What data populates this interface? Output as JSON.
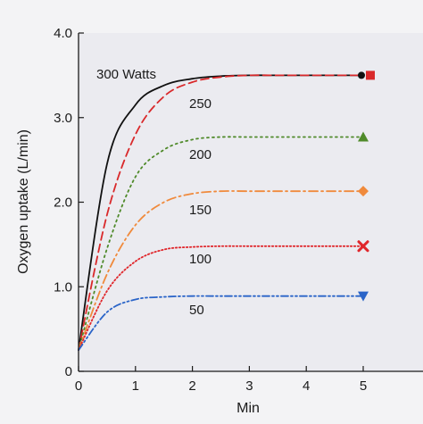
{
  "chart_data": {
    "type": "line",
    "xlabel": "Min",
    "ylabel": "Oxygen uptake (L/min)",
    "xlim": [
      0,
      5
    ],
    "ylim": [
      0,
      4
    ],
    "xticks": [
      "0",
      "1",
      "2",
      "3",
      "4",
      "5"
    ],
    "yticks": [
      "0",
      "1.0",
      "2.0",
      "3.0",
      "4.0"
    ],
    "x": [
      0,
      0.5,
      1,
      1.5,
      2,
      2.5,
      3,
      3.5,
      4,
      4.5,
      5
    ],
    "grid": false,
    "series": [
      {
        "name": "300 Watts",
        "color": "#111111",
        "line_style": "solid",
        "marker": "circle",
        "values": [
          0.25,
          2.45,
          3.15,
          3.38,
          3.46,
          3.49,
          3.5,
          3.5,
          3.5,
          3.5,
          3.5
        ]
      },
      {
        "name": "250",
        "color": "#d9292b",
        "line_style": "dashed",
        "marker": "square",
        "values": [
          0.25,
          1.85,
          2.8,
          3.25,
          3.42,
          3.48,
          3.5,
          3.5,
          3.5,
          3.5,
          3.5
        ]
      },
      {
        "name": "200",
        "color": "#4f8a2a",
        "line_style": "dotted",
        "marker": "triangle-up",
        "values": [
          0.25,
          1.45,
          2.3,
          2.62,
          2.74,
          2.77,
          2.77,
          2.77,
          2.77,
          2.77,
          2.77
        ]
      },
      {
        "name": "150",
        "color": "#f08a3c",
        "line_style": "dashdot",
        "marker": "diamond",
        "values": [
          0.25,
          1.15,
          1.73,
          2.0,
          2.1,
          2.13,
          2.13,
          2.13,
          2.13,
          2.13,
          2.13
        ]
      },
      {
        "name": "100",
        "color": "#e0262b",
        "line_style": "fine-dotted",
        "marker": "x",
        "values": [
          0.25,
          0.95,
          1.3,
          1.44,
          1.47,
          1.48,
          1.48,
          1.48,
          1.48,
          1.48,
          1.48
        ]
      },
      {
        "name": "50",
        "color": "#2a64c8",
        "line_style": "dashdotdot",
        "marker": "triangle-down",
        "values": [
          0.25,
          0.7,
          0.85,
          0.88,
          0.89,
          0.89,
          0.89,
          0.89,
          0.89,
          0.89,
          0.89
        ]
      }
    ]
  }
}
